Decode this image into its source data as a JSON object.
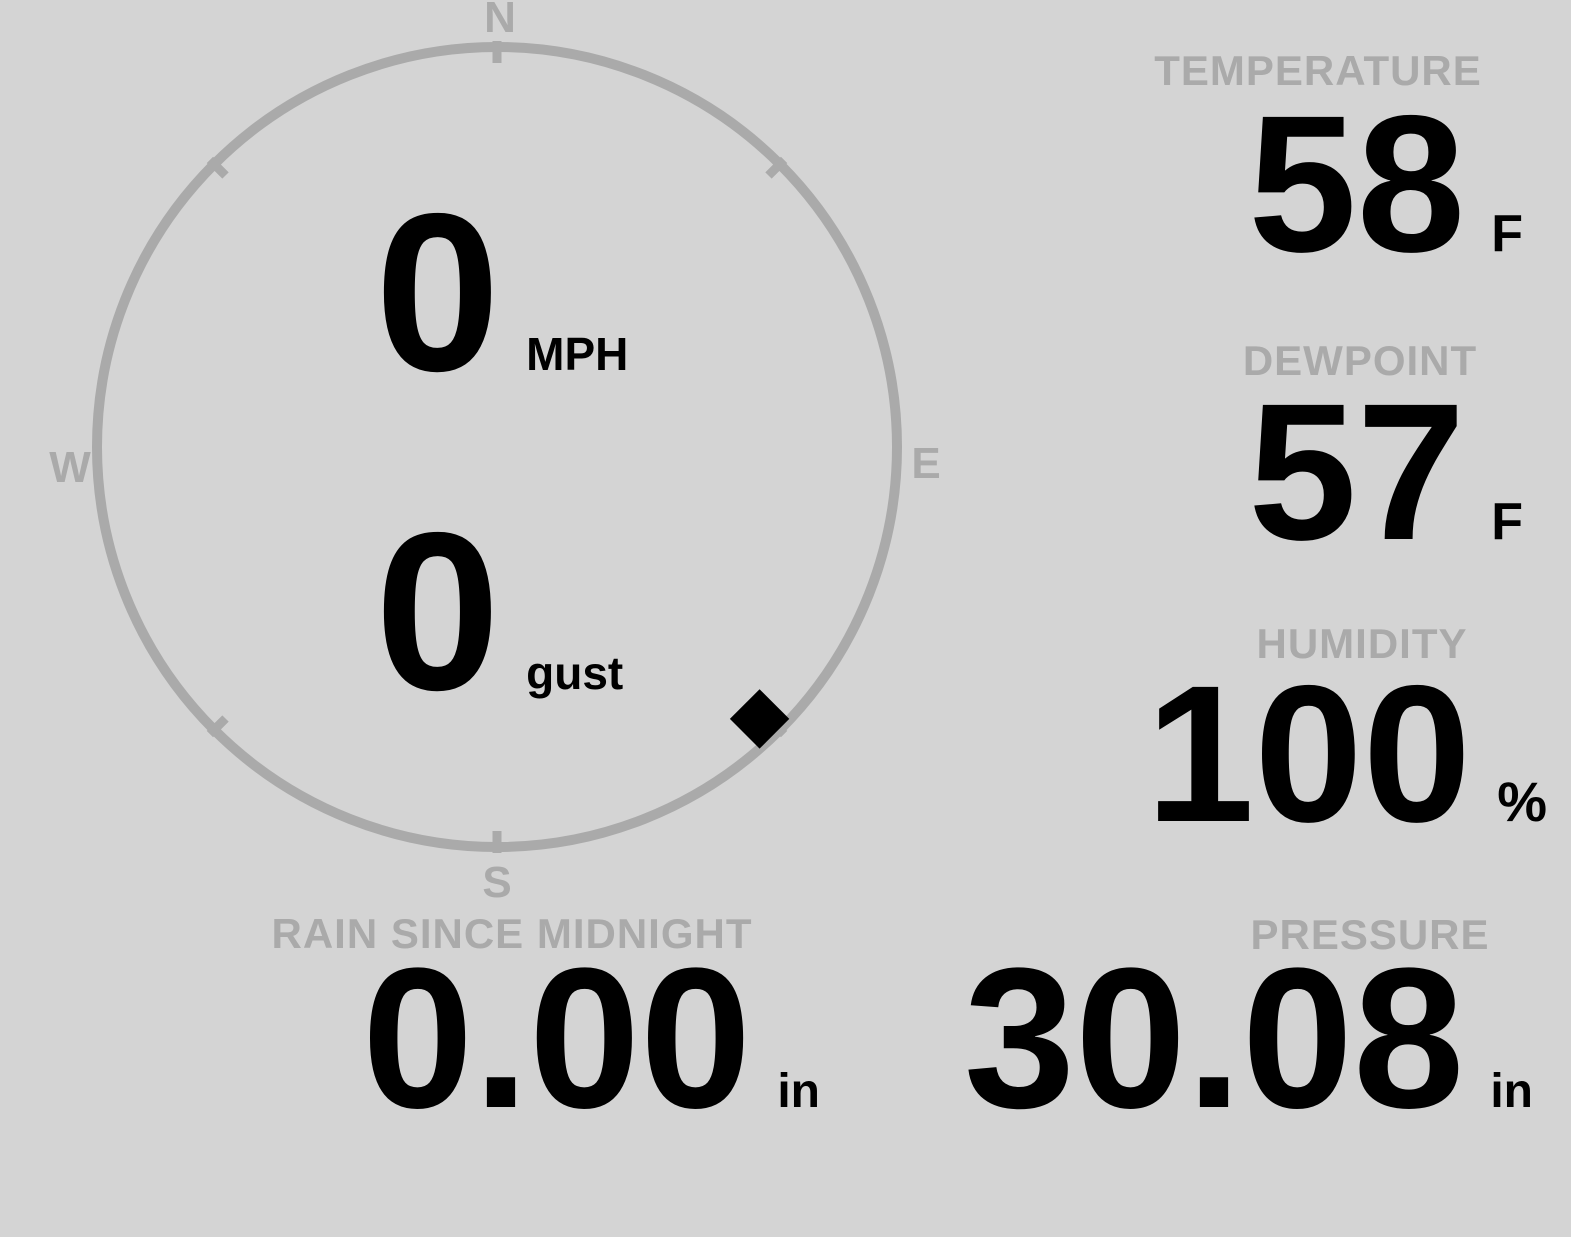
{
  "colors": {
    "background": "#d4d4d4",
    "muted_gray": "#aaaaaa",
    "ink": "#000000"
  },
  "compass": {
    "labels": {
      "north": "N",
      "east": "E",
      "south": "S",
      "west": "W"
    },
    "speed": {
      "value": "0",
      "unit": "MPH"
    },
    "gust": {
      "value": "0",
      "unit": "gust"
    },
    "marker": {
      "bearing_deg": 136
    }
  },
  "stats": {
    "temperature": {
      "label": "TEMPERATURE",
      "value": "58",
      "unit": "F"
    },
    "dewpoint": {
      "label": "DEWPOINT",
      "value": "57",
      "unit": "F"
    },
    "humidity": {
      "label": "HUMIDITY",
      "value": "100",
      "unit": "%"
    },
    "rain": {
      "label": "RAIN SINCE MIDNIGHT",
      "value": "0.00",
      "unit": "in"
    },
    "pressure": {
      "label": "PRESSURE",
      "value": "30.08",
      "unit": "in"
    }
  }
}
